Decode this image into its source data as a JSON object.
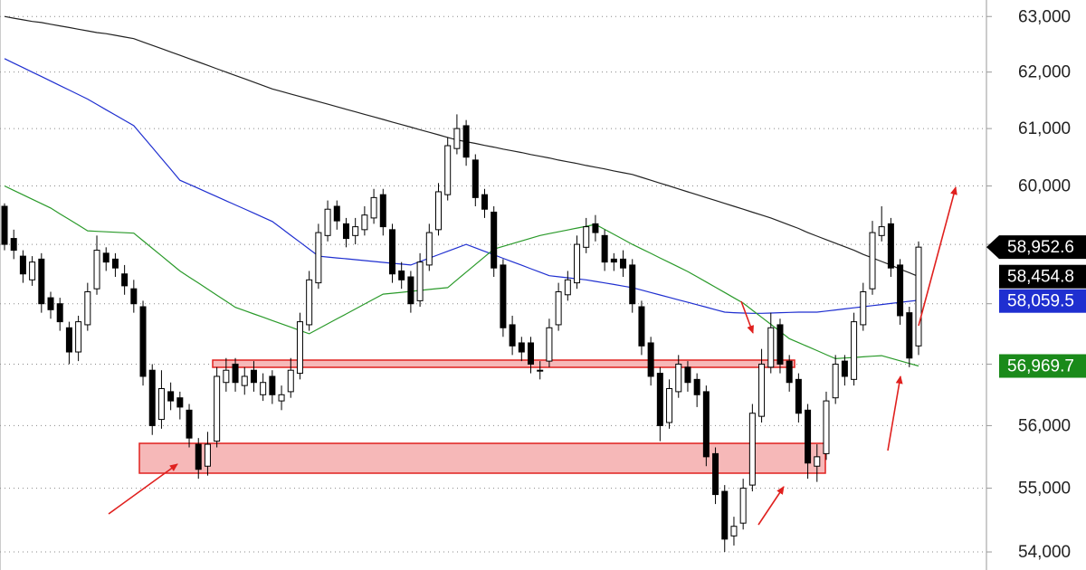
{
  "chart_data": {
    "type": "candlestick",
    "log_scale": true,
    "grid": true,
    "ylim": [
      53720,
      63300
    ],
    "yticks": [
      {
        "value": 54000,
        "label": "54,000"
      },
      {
        "value": 55000,
        "label": "55,000"
      },
      {
        "value": 56000,
        "label": "56,000"
      },
      {
        "value": 57000,
        "label": "57,000"
      },
      {
        "value": 58000,
        "label": "58,000"
      },
      {
        "value": 59000,
        "label": "59,000"
      },
      {
        "value": 60000,
        "label": "60,000"
      },
      {
        "value": 61000,
        "label": "61,000"
      },
      {
        "value": 62000,
        "label": "62,000"
      },
      {
        "value": 63000,
        "label": "63,000"
      }
    ],
    "up_color": "#ffffff",
    "down_color": "#000000",
    "open": [
      59650,
      59100,
      58800,
      58400,
      58750,
      58100,
      58000,
      57600,
      57200,
      57650,
      58250,
      58850,
      58750,
      58500,
      58250,
      57950,
      56900,
      56100,
      56550,
      56450,
      56250,
      55700,
      55350,
      55750,
      56700,
      57000,
      56650,
      56900,
      56500,
      56800,
      56400,
      56550,
      56850,
      57650,
      58350,
      59150,
      59650,
      59350,
      59150,
      59250,
      59450,
      59850,
      59250,
      58550,
      58450,
      58050,
      58650,
      59250,
      59850,
      60650,
      61050,
      60450,
      59850,
      59550,
      58650,
      57650,
      57350,
      57350,
      56900,
      57050,
      57650,
      58150,
      58350,
      58950,
      59350,
      59150,
      58750,
      58750,
      58650,
      57950,
      57350,
      56850,
      56050,
      56550,
      56950,
      56750,
      56550,
      55550,
      54950,
      54250,
      54450,
      55050,
      56150,
      56950,
      57650,
      57050,
      56750,
      56250,
      55350,
      55550,
      56450,
      57050,
      56750,
      57650,
      58250,
      59150,
      59350,
      58650,
      57850,
      57300
    ],
    "high": [
      59700,
      59250,
      58900,
      58800,
      58850,
      58200,
      58100,
      57700,
      57800,
      58350,
      59150,
      58950,
      58850,
      58650,
      58400,
      58050,
      57000,
      56900,
      56700,
      56550,
      56350,
      55800,
      55900,
      56950,
      57100,
      57100,
      56950,
      57050,
      56850,
      56900,
      56650,
      57100,
      57850,
      58550,
      59350,
      59750,
      59750,
      59450,
      59450,
      59650,
      59950,
      59950,
      59350,
      58700,
      58550,
      58850,
      59350,
      60050,
      60850,
      61250,
      61150,
      60550,
      59950,
      59650,
      58750,
      57800,
      57450,
      57450,
      57050,
      57750,
      58350,
      58550,
      59150,
      59450,
      59500,
      59250,
      58850,
      58900,
      58750,
      58050,
      57450,
      56950,
      56750,
      57150,
      57050,
      56850,
      56650,
      55650,
      55050,
      54550,
      55150,
      56350,
      57250,
      57850,
      57750,
      57150,
      56850,
      56350,
      55700,
      56550,
      57150,
      57150,
      57850,
      58350,
      59400,
      59650,
      59450,
      58750,
      57950,
      59050
    ],
    "low": [
      58900,
      58750,
      58350,
      58300,
      57850,
      57750,
      57550,
      57000,
      57050,
      57550,
      58150,
      58550,
      58450,
      58150,
      57850,
      56650,
      55850,
      55950,
      56250,
      56100,
      55650,
      55150,
      55200,
      55650,
      56550,
      56550,
      56500,
      56550,
      56400,
      56350,
      56250,
      56450,
      56750,
      57550,
      58250,
      59050,
      59250,
      58950,
      59000,
      59150,
      59350,
      59150,
      58350,
      58250,
      57850,
      57950,
      58550,
      59150,
      59750,
      60550,
      60350,
      59650,
      59450,
      58450,
      57450,
      57150,
      57050,
      56850,
      56750,
      56950,
      57550,
      58050,
      58250,
      58850,
      59050,
      58550,
      58550,
      58450,
      57850,
      57150,
      56650,
      55750,
      55950,
      56450,
      56550,
      56300,
      55350,
      54750,
      54000,
      54100,
      54350,
      54950,
      56050,
      56850,
      56850,
      56550,
      56050,
      55150,
      55100,
      55450,
      56350,
      56650,
      56650,
      57550,
      58150,
      59050,
      58450,
      57650,
      56950,
      57150
    ],
    "close": [
      59000,
      58900,
      58500,
      58700,
      58000,
      57900,
      57700,
      57200,
      57700,
      58200,
      58900,
      58700,
      58600,
      58300,
      58000,
      56800,
      56000,
      56600,
      56400,
      56300,
      55800,
      55300,
      55700,
      56800,
      56900,
      56700,
      56800,
      56700,
      56700,
      56500,
      56500,
      56900,
      57700,
      58400,
      59200,
      59600,
      59400,
      59100,
      59300,
      59500,
      59800,
      59300,
      58500,
      58400,
      58000,
      58700,
      59200,
      59900,
      60700,
      61000,
      60500,
      59800,
      59600,
      58600,
      57600,
      57300,
      57200,
      57000,
      56900,
      57600,
      58200,
      58400,
      59000,
      59300,
      59200,
      58700,
      58700,
      58600,
      58000,
      57300,
      56800,
      56000,
      56600,
      57000,
      56700,
      56500,
      55500,
      54900,
      54200,
      54400,
      55000,
      56200,
      57000,
      57600,
      57000,
      56700,
      56200,
      55400,
      55500,
      56400,
      57000,
      56800,
      57700,
      58200,
      59200,
      59300,
      58600,
      57800,
      57100,
      58952.6
    ],
    "moving_averages": [
      {
        "color": "#222222",
        "values": [
          63000,
          62970,
          62940,
          62910,
          62890,
          62860,
          62830,
          62800,
          62770,
          62740,
          62710,
          62690,
          62660,
          62630,
          62600,
          62540,
          62480,
          62420,
          62360,
          62300,
          62240,
          62180,
          62120,
          62060,
          62000,
          61940,
          61880,
          61820,
          61760,
          61700,
          61655,
          61610,
          61565,
          61520,
          61475,
          61430,
          61385,
          61340,
          61295,
          61250,
          61205,
          61160,
          61115,
          61070,
          61025,
          60980,
          60935,
          60890,
          60845,
          60800,
          60770,
          60740,
          60705,
          60675,
          60640,
          60610,
          60580,
          60545,
          60515,
          60485,
          60450,
          60420,
          60390,
          60355,
          60325,
          60295,
          60260,
          60230,
          60200,
          60150,
          60100,
          60050,
          60000,
          59950,
          59900,
          59850,
          59800,
          59750,
          59700,
          59650,
          59600,
          59550,
          59500,
          59450,
          59390,
          59330,
          59270,
          59200,
          59140,
          59080,
          59020,
          58960,
          58900,
          58830,
          58770,
          58710,
          58650,
          58580,
          58520,
          58454.8
        ]
      },
      {
        "color": "#1f2fd0",
        "values": [
          62240,
          62160,
          62080,
          62000,
          61920,
          61840,
          61760,
          61680,
          61600,
          61520,
          61426,
          61332,
          61238,
          61144,
          61050,
          60860,
          60670,
          60480,
          60290,
          60100,
          60029,
          59958,
          59887,
          59816,
          59745,
          59674,
          59603,
          59532,
          59461,
          59390,
          59272,
          59154,
          59036,
          58918,
          58800,
          58785,
          58770,
          58755,
          58740,
          58725,
          58710,
          58695,
          58680,
          58665,
          58650,
          58708,
          58767,
          58825,
          58883,
          58942,
          59000,
          58941,
          58882,
          58823,
          58764,
          58706,
          58647,
          58588,
          58529,
          58470,
          58452,
          58435,
          58417,
          58400,
          58374,
          58348,
          58322,
          58296,
          58270,
          58229,
          58188,
          58147,
          58106,
          58065,
          58024,
          57983,
          57942,
          57901,
          57860,
          57850,
          57845,
          57840,
          57840,
          57845,
          57850,
          57855,
          57860,
          57860,
          57860,
          57878,
          57896,
          57914,
          57932,
          57950,
          57969,
          57987,
          58005,
          58023,
          58041,
          58059.5
        ]
      },
      {
        "color": "#2a9a2a",
        "values": [
          60000,
          59924,
          59848,
          59772,
          59696,
          59620,
          59520,
          59425,
          59328,
          59230,
          59222,
          59214,
          59206,
          59198,
          59190,
          59062,
          58934,
          58806,
          58678,
          58550,
          58448,
          58347,
          58245,
          58143,
          58042,
          57940,
          57885,
          57830,
          57775,
          57720,
          57665,
          57610,
          57555,
          57500,
          57583,
          57665,
          57748,
          57830,
          57913,
          57995,
          58078,
          58160,
          58176,
          58191,
          58207,
          58223,
          58239,
          58254,
          58270,
          58400,
          58530,
          58660,
          58790,
          58920,
          58966,
          59012,
          59058,
          59104,
          59150,
          59182,
          59213,
          59245,
          59277,
          59308,
          59340,
          59255,
          59170,
          59085,
          59000,
          58923,
          58847,
          58770,
          58693,
          58617,
          58540,
          58452,
          58363,
          58275,
          58187,
          58098,
          58010,
          57892,
          57774,
          57656,
          57538,
          57420,
          57354,
          57288,
          57222,
          57156,
          57090,
          57100,
          57110,
          57120,
          57130,
          57140,
          57097,
          57055,
          57012,
          56969.7
        ]
      }
    ],
    "price_labels": [
      {
        "value": 58952.6,
        "label": "58,952.6",
        "color": "#000000"
      },
      {
        "value": 58454.8,
        "label": "58,454.8",
        "color": "#000000"
      },
      {
        "value": 58059.5,
        "label": "58,059.5",
        "color": "#1f2fd0"
      },
      {
        "value": 56969.7,
        "label": "56,969.7",
        "color": "#1a8a1a"
      }
    ]
  }
}
